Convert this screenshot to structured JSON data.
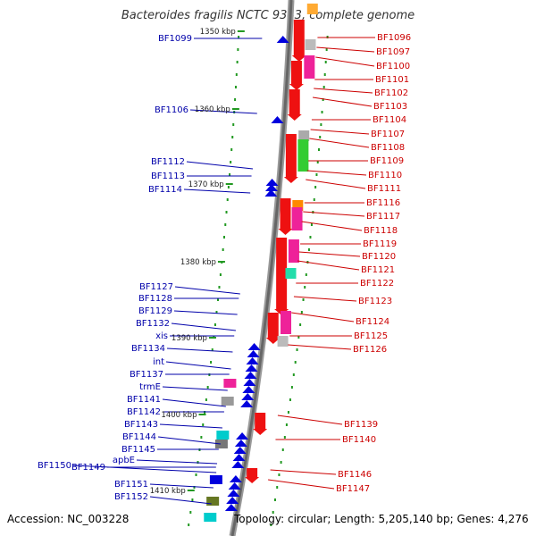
{
  "title": "Bacteroides fragilis NCTC 9343, complete genome",
  "accession": "Accession: NC_003228",
  "topology": "Topology: circular; Length: 5,205,140 bp; Genes: 4,276",
  "colors": {
    "reverse_gene": "#ee1111",
    "forward_gene": "#0000dd",
    "left_label": "#0000aa",
    "right_label": "#cc0000",
    "tick": "#229922"
  },
  "kbp_labels": [
    "1350 kbp",
    "1360 kbp",
    "1370 kbp",
    "1380 kbp",
    "1390 kbp",
    "1400 kbp",
    "1410 kbp"
  ],
  "left_genes": [
    "BF1099",
    "BF1106",
    "BF1112",
    "BF1113",
    "BF1114",
    "BF1127",
    "BF1128",
    "BF1129",
    "BF1132",
    "xis",
    "BF1134",
    "int",
    "BF1137",
    "trmE",
    "BF1141",
    "BF1142",
    "BF1143",
    "BF1144",
    "BF1145",
    "apbE",
    "BF1150",
    "BF1149",
    "BF1151",
    "BF1152"
  ],
  "right_genes": [
    "BF1096",
    "BF1097",
    "BF1100",
    "BF1101",
    "BF1102",
    "BF1103",
    "BF1104",
    "BF1107",
    "BF1108",
    "BF1109",
    "BF1110",
    "BF1111",
    "BF1116",
    "BF1117",
    "BF1118",
    "BF1119",
    "BF1120",
    "BF1121",
    "BF1122",
    "BF1123",
    "BF1124",
    "BF1125",
    "BF1126",
    "BF1139",
    "BF1140",
    "BF1146",
    "BF1147"
  ]
}
